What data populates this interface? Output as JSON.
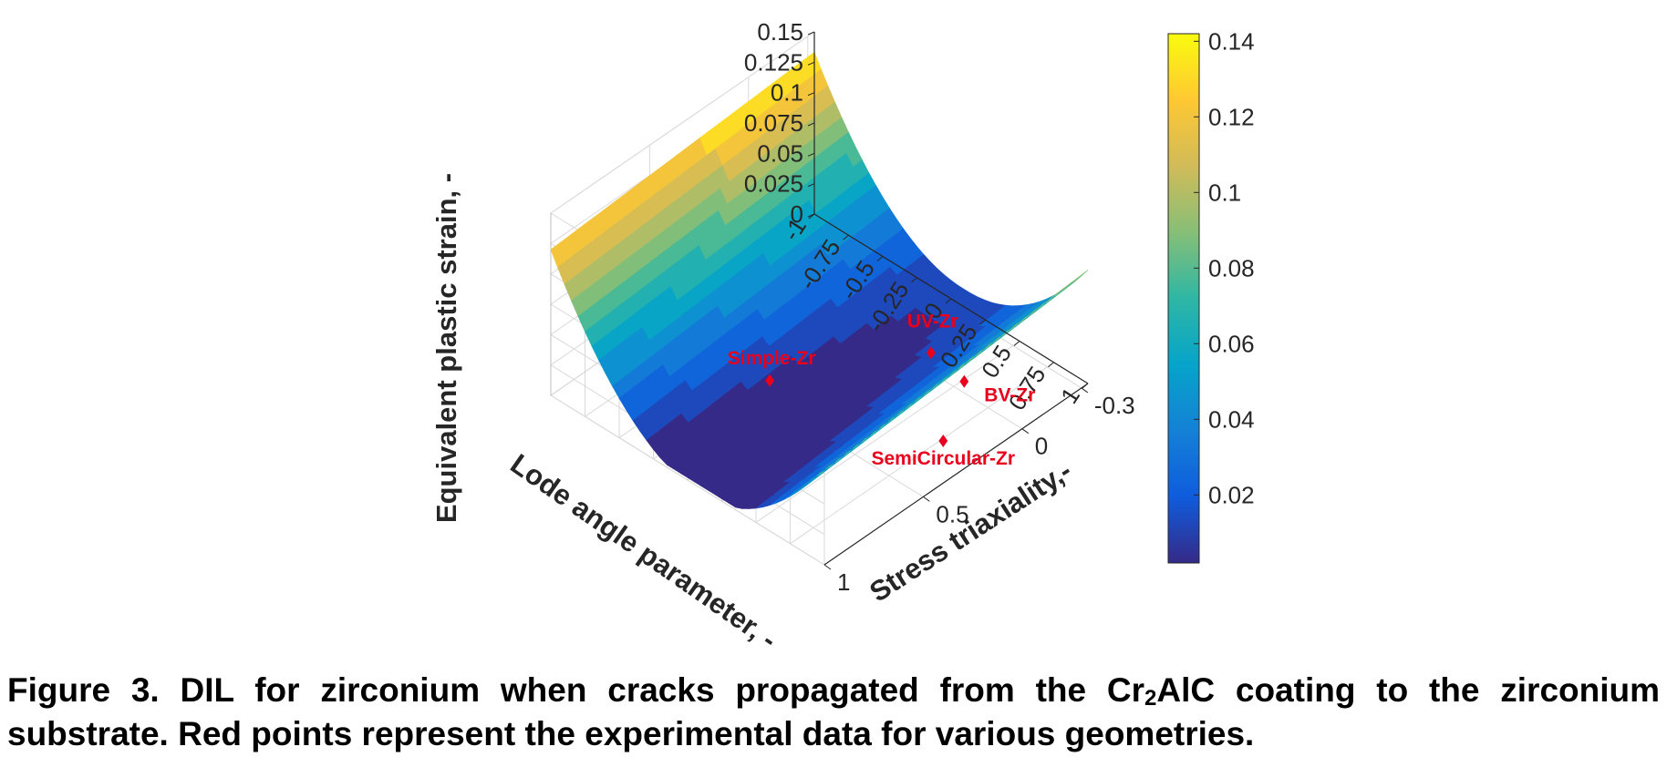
{
  "chart_data": {
    "type": "surface",
    "title": "",
    "xlabel": "Lode angle parameter, -",
    "ylabel": "Stress triaxiality,-",
    "zlabel": "Equivalent plastic strain, -",
    "x_ticks": [
      "-1",
      "-0.75",
      "-0.5",
      "-0.25",
      "0",
      "0.25",
      "0.5",
      "0.75",
      "1"
    ],
    "y_ticks": [
      "-0.3",
      "0",
      "0.5",
      "1"
    ],
    "y_tick_values": [
      -0.3,
      0,
      0.5,
      1
    ],
    "z_ticks": [
      "0",
      "0.025",
      "0.05",
      "0.075",
      "0.1",
      "0.125",
      "0.15"
    ],
    "xlim": [
      -1,
      1
    ],
    "ylim": [
      -0.333,
      1
    ],
    "zlim": [
      0,
      0.15
    ],
    "colorbar": {
      "ticks": [
        "0.02",
        "0.04",
        "0.06",
        "0.08",
        "0.1",
        "0.12",
        "0.14"
      ],
      "tick_values": [
        0.02,
        0.04,
        0.06,
        0.08,
        0.1,
        0.12,
        0.14
      ],
      "range": [
        0.002,
        0.142
      ],
      "colormap": "parula"
    },
    "colormap_colors": [
      "#352a87",
      "#0f5cdd",
      "#1481d6",
      "#06a4ca",
      "#2eb7a4",
      "#87bf77",
      "#d1bb59",
      "#fec832",
      "#f9fb0e"
    ],
    "surface_model": "quadratic in Lode angle parameter, minimum 0.002 near Lode 0.1 and triaxiality 0.5; rises to 0.125 at Lode -1 and 0.142 at Lode -1, triaxiality -0.33",
    "experimental_points": [
      {
        "name": "Simple-Zr",
        "lode": -0.05,
        "triaxiality": 0.55,
        "strain": 0.028
      },
      {
        "name": "UV-Zr",
        "lode": 0.55,
        "triaxiality": 0.15,
        "strain": 0.048
      },
      {
        "name": "BV-Zr",
        "lode": 0.75,
        "triaxiality": 0.12,
        "strain": 0.035
      },
      {
        "name": "SemiCircular-Zr",
        "lode": 0.9,
        "triaxiality": 0.33,
        "strain": 0.02
      }
    ],
    "marker_color": "#e8001c",
    "grid": true
  },
  "caption": {
    "line1_start": "Figure 3. DIL for zirconium when cracks propagated from the Cr",
    "line1_sub": "2",
    "line1_end": "AlC coating to the zirconium",
    "line2": "substrate. Red points represent the experimental data for various geometries."
  }
}
